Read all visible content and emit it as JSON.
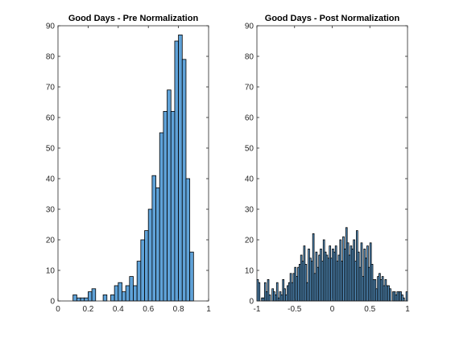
{
  "figure": {
    "background": "#ffffff",
    "bar_color": "#5fa2d8",
    "edge_color": "#000000"
  },
  "chart_data": [
    {
      "type": "bar",
      "title": "Good Days - Pre Normalization",
      "xlabel": "",
      "ylabel": "",
      "xlim": [
        0,
        1
      ],
      "ylim": [
        0,
        90
      ],
      "xticks": [
        0,
        0.2,
        0.4,
        0.6,
        0.8,
        1
      ],
      "xtick_labels": [
        "0",
        "0.2",
        "0.4",
        "0.6",
        "0.8",
        "1"
      ],
      "yticks": [
        0,
        10,
        20,
        30,
        40,
        50,
        60,
        70,
        80,
        90
      ],
      "ytick_labels": [
        "0",
        "10",
        "20",
        "30",
        "40",
        "50",
        "60",
        "70",
        "80",
        "90"
      ],
      "grid": false,
      "bins": {
        "start": 0.1,
        "width": 0.025,
        "values": [
          2,
          1,
          1,
          1,
          3,
          4,
          0,
          0,
          2,
          0,
          2,
          5,
          6,
          3,
          5,
          8,
          5,
          13,
          20,
          23,
          30,
          41,
          37,
          55,
          62,
          69,
          62,
          85,
          87,
          79,
          40,
          16
        ]
      }
    },
    {
      "type": "bar",
      "title": "Good Days - Post Normalization",
      "xlabel": "",
      "ylabel": "",
      "xlim": [
        -1,
        1
      ],
      "ylim": [
        0,
        90
      ],
      "xticks": [
        -1,
        -0.5,
        0,
        0.5,
        1
      ],
      "xtick_labels": [
        "-1",
        "-0.5",
        "0",
        "0.5",
        "1"
      ],
      "yticks": [
        0,
        10,
        20,
        30,
        40,
        50,
        60,
        70,
        80,
        90
      ],
      "ytick_labels": [
        "0",
        "10",
        "20",
        "30",
        "40",
        "50",
        "60",
        "70",
        "80",
        "90"
      ],
      "grid": false,
      "bins": {
        "start": -1,
        "width": 0.02,
        "values": [
          7,
          6,
          0,
          1,
          1,
          6,
          3,
          7,
          2,
          0,
          4,
          3,
          2,
          6,
          1,
          3,
          2,
          7,
          4,
          2,
          5,
          6,
          9,
          6,
          9,
          11,
          8,
          11,
          12,
          15,
          13,
          18,
          12,
          6,
          17,
          14,
          13,
          22,
          9,
          16,
          11,
          15,
          17,
          13,
          20,
          16,
          15,
          14,
          18,
          14,
          17,
          16,
          18,
          13,
          15,
          20,
          13,
          21,
          17,
          24,
          19,
          15,
          18,
          17,
          20,
          13,
          23,
          16,
          11,
          19,
          8,
          17,
          14,
          18,
          11,
          19,
          12,
          7,
          7,
          4,
          8,
          9,
          7,
          8,
          5,
          7,
          5,
          5,
          4,
          0,
          3,
          3,
          2,
          3,
          3,
          3,
          2,
          1,
          0,
          3
        ]
      }
    }
  ]
}
